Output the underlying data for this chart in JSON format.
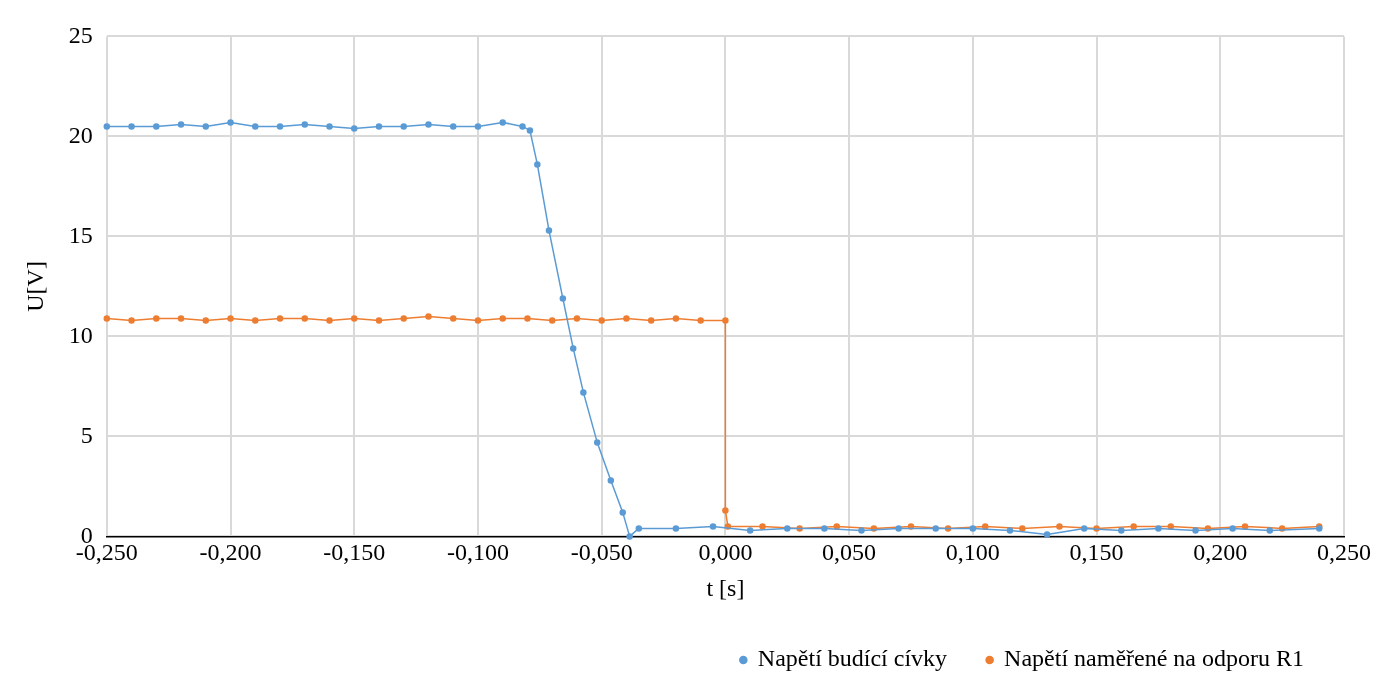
{
  "chart_data": {
    "type": "line",
    "xlabel": "t [s]",
    "ylabel": "U[V]",
    "xlim": [
      -0.25,
      0.25
    ],
    "xticks": [
      {
        "value": -0.25,
        "label": "-0,250"
      },
      {
        "value": -0.2,
        "label": "-0,200"
      },
      {
        "value": -0.15,
        "label": "-0,150"
      },
      {
        "value": -0.1,
        "label": "-0,100"
      },
      {
        "value": -0.05,
        "label": "-0,050"
      },
      {
        "value": 0,
        "label": "0,000"
      },
      {
        "value": 0.05,
        "label": "0,050"
      },
      {
        "value": 0.1,
        "label": "0,100"
      },
      {
        "value": 0.15,
        "label": "0,150"
      },
      {
        "value": 0.2,
        "label": "0,200"
      },
      {
        "value": 0.25,
        "label": "0,250"
      }
    ],
    "ylim": [
      0,
      25
    ],
    "yticks": [
      0,
      5,
      10,
      15,
      20,
      25
    ],
    "grid": true,
    "legend": "bottom right",
    "marker": "circle",
    "line_style": "solid",
    "series": [
      {
        "name": "Napětí budící cívky",
        "color": "#5b9bd5",
        "x": [
          -0.25,
          -0.24,
          -0.23,
          -0.22,
          -0.21,
          -0.2,
          -0.19,
          -0.18,
          -0.17,
          -0.16,
          -0.15,
          -0.14,
          -0.13,
          -0.12,
          -0.11,
          -0.1,
          -0.09,
          -0.082,
          -0.079,
          -0.076,
          -0.0713,
          -0.0657,
          -0.0615,
          -0.0574,
          -0.0518,
          -0.0463,
          -0.0415,
          -0.0387,
          -0.035,
          -0.02,
          -0.005,
          0.01,
          0.025,
          0.04,
          0.055,
          0.07,
          0.085,
          0.1,
          0.115,
          0.13,
          0.145,
          0.16,
          0.175,
          0.19,
          0.205,
          0.22,
          0.24
        ],
        "values": [
          20.5,
          20.5,
          20.5,
          20.6,
          20.5,
          20.7,
          20.5,
          20.5,
          20.6,
          20.5,
          20.4,
          20.5,
          20.5,
          20.6,
          20.5,
          20.5,
          20.7,
          20.5,
          20.3,
          18.6,
          15.3,
          11.9,
          9.4,
          7.2,
          4.7,
          2.8,
          1.2,
          0,
          0.4,
          0.4,
          0.5,
          0.3,
          0.4,
          0.4,
          0.3,
          0.4,
          0.4,
          0.4,
          0.3,
          0.1,
          0.4,
          0.3,
          0.4,
          0.3,
          0.4,
          0.3,
          0.4
        ]
      },
      {
        "name": "Napětí naměřené na odporu R1",
        "color": "#ed7d31",
        "x": [
          -0.25,
          -0.24,
          -0.23,
          -0.22,
          -0.21,
          -0.2,
          -0.19,
          -0.18,
          -0.17,
          -0.16,
          -0.15,
          -0.14,
          -0.13,
          -0.12,
          -0.11,
          -0.1,
          -0.09,
          -0.08,
          -0.07,
          -0.06,
          -0.05,
          -0.04,
          -0.03,
          -0.02,
          -0.01,
          0,
          0,
          0.001,
          0.015,
          0.03,
          0.045,
          0.06,
          0.075,
          0.09,
          0.105,
          0.12,
          0.135,
          0.15,
          0.165,
          0.18,
          0.195,
          0.21,
          0.225,
          0.24
        ],
        "values": [
          10.9,
          10.8,
          10.9,
          10.9,
          10.8,
          10.9,
          10.8,
          10.9,
          10.9,
          10.8,
          10.9,
          10.8,
          10.9,
          11.0,
          10.9,
          10.8,
          10.9,
          10.9,
          10.8,
          10.9,
          10.8,
          10.9,
          10.8,
          10.9,
          10.8,
          10.8,
          1.3,
          0.5,
          0.5,
          0.4,
          0.5,
          0.4,
          0.5,
          0.4,
          0.5,
          0.4,
          0.5,
          0.4,
          0.5,
          0.5,
          0.4,
          0.5,
          0.4,
          0.5
        ]
      }
    ]
  }
}
